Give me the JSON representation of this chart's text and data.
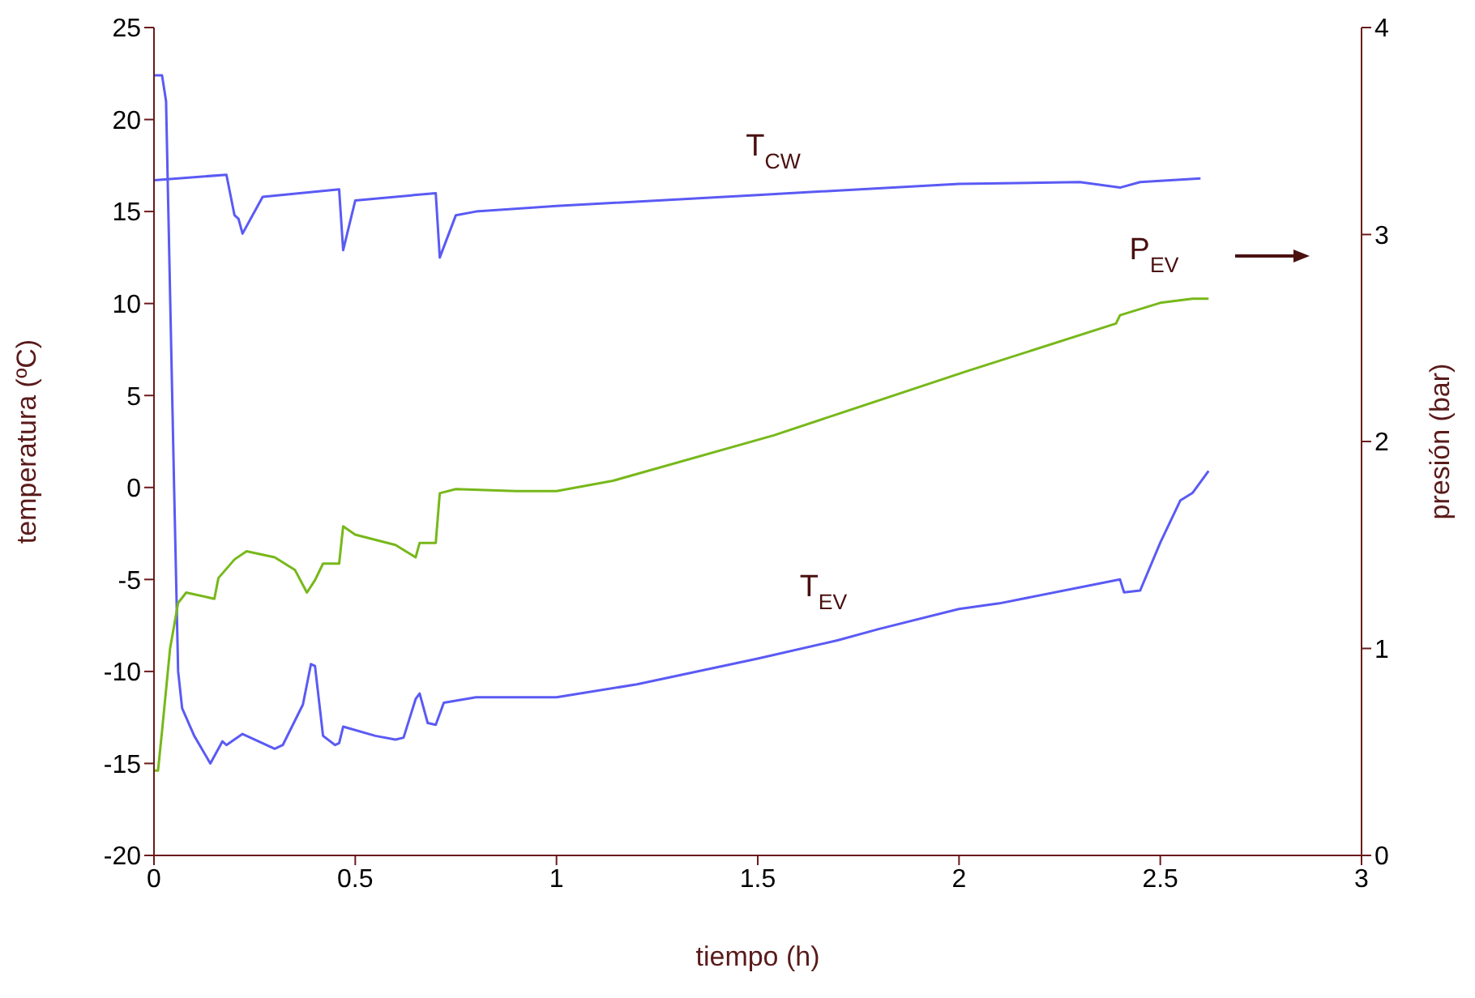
{
  "chart_data": {
    "type": "line",
    "xlabel": "tiempo (h)",
    "ylabel": "temperatura (ºC)",
    "y2label": "presión (bar)",
    "xlim": [
      0,
      3
    ],
    "xticks": [
      0,
      0.5,
      1,
      1.5,
      2,
      2.5,
      3
    ],
    "ylim": [
      -20,
      25
    ],
    "yticks": [
      -20,
      -15,
      -10,
      -5,
      0,
      5,
      10,
      15,
      20,
      25
    ],
    "y2lim": [
      0,
      4
    ],
    "y2ticks": [
      0,
      1,
      2,
      3,
      4
    ],
    "marker": "none",
    "line_style": "solid",
    "series": [
      {
        "color": "#5a5af5",
        "x": [
          0,
          0.18,
          0.2,
          0.21,
          0.22,
          0.27,
          0.46,
          0.47,
          0.5,
          0.7,
          0.71,
          0.75,
          0.8,
          1.0,
          1.5,
          2.0,
          2.3,
          2.4,
          2.45,
          2.6
        ],
        "values": [
          16.7,
          17.0,
          14.8,
          14.6,
          13.8,
          15.8,
          16.2,
          12.9,
          15.6,
          16.0,
          12.5,
          14.8,
          15.0,
          15.3,
          15.9,
          16.5,
          16.6,
          16.3,
          16.6,
          16.8
        ]
      },
      {
        "color": "#5a5af5",
        "x": [
          0,
          0.02,
          0.03,
          0.05,
          0.06,
          0.07,
          0.1,
          0.14,
          0.17,
          0.18,
          0.22,
          0.3,
          0.32,
          0.37,
          0.39,
          0.4,
          0.42,
          0.45,
          0.46,
          0.47,
          0.55,
          0.6,
          0.62,
          0.65,
          0.66,
          0.68,
          0.7,
          0.72,
          0.8,
          1.0,
          1.2,
          1.5,
          1.7,
          1.8,
          2.0,
          2.1,
          2.4,
          2.41,
          2.45,
          2.5,
          2.55,
          2.58,
          2.62
        ],
        "values": [
          22.4,
          22.4,
          21,
          0,
          -10,
          -12,
          -13.5,
          -15,
          -13.8,
          -14,
          -13.4,
          -14.2,
          -14.0,
          -11.8,
          -9.6,
          -9.7,
          -13.5,
          -14,
          -13.9,
          -13.0,
          -13.5,
          -13.7,
          -13.6,
          -11.5,
          -11.2,
          -12.8,
          -12.9,
          -11.7,
          -11.4,
          -11.4,
          -10.7,
          -9.3,
          -8.3,
          -7.7,
          -6.6,
          -6.3,
          -5.0,
          -5.7,
          -5.6,
          -3.0,
          -0.7,
          -0.3,
          0.9
        ]
      },
      {
        "color": "#77b81a",
        "axis": "y2",
        "x": [
          0,
          0.01,
          0.02,
          0.04,
          0.06,
          0.08,
          0.15,
          0.16,
          0.2,
          0.23,
          0.3,
          0.35,
          0.38,
          0.4,
          0.42,
          0.46,
          0.47,
          0.5,
          0.6,
          0.65,
          0.66,
          0.7,
          0.71,
          0.75,
          0.9,
          1.0,
          1.14,
          1.54,
          2.02,
          2.39,
          2.4,
          2.5,
          2.58,
          2.62
        ],
        "values": [
          0.41,
          0.41,
          0.6,
          1.0,
          1.22,
          1.27,
          1.24,
          1.34,
          1.43,
          1.47,
          1.44,
          1.38,
          1.27,
          1.33,
          1.41,
          1.41,
          1.59,
          1.55,
          1.5,
          1.44,
          1.51,
          1.51,
          1.75,
          1.77,
          1.76,
          1.76,
          1.81,
          2.03,
          2.34,
          2.57,
          2.61,
          2.67,
          2.69,
          2.69
        ]
      }
    ],
    "annotations": [
      "T$_{CW}$",
      "P$_{EV}$",
      "T$_{EV}$"
    ]
  }
}
